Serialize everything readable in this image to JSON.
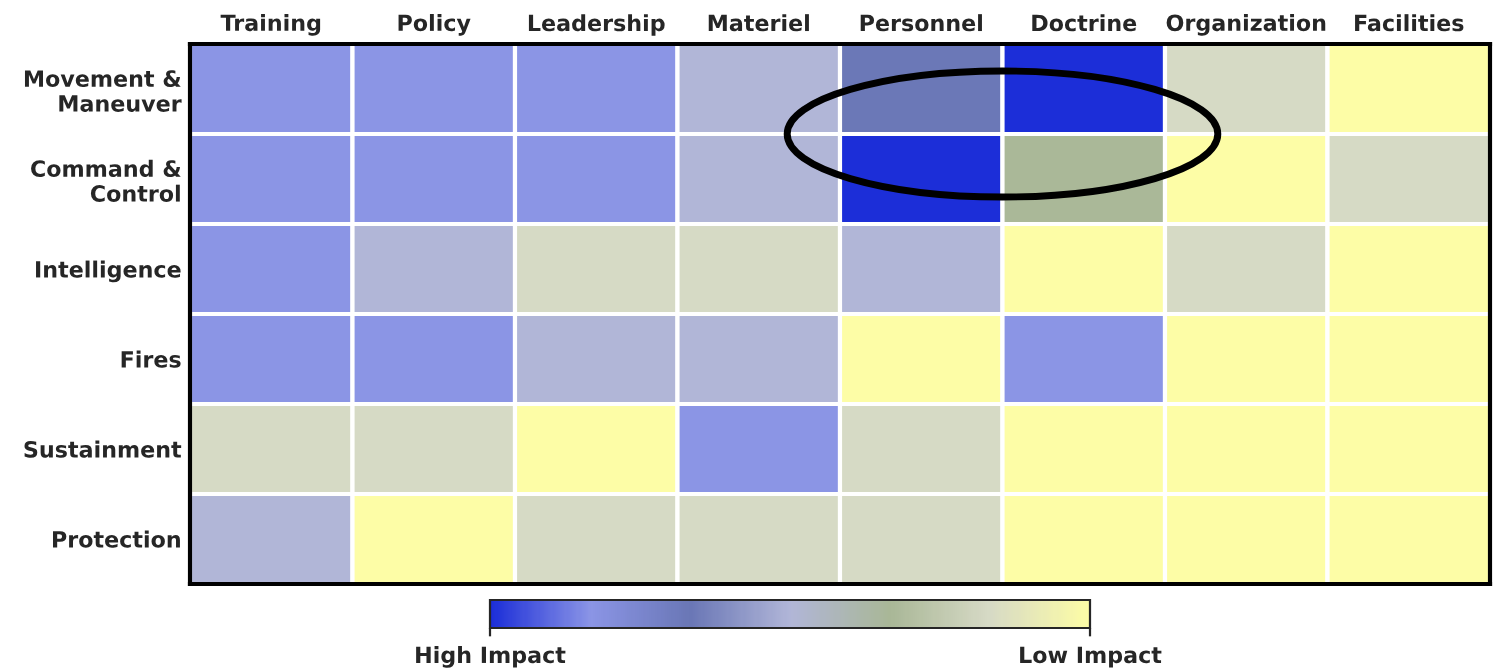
{
  "chart_data": {
    "type": "heatmap",
    "categories": [
      "Training",
      "Policy",
      "Leadership",
      "Materiel",
      "Personnel",
      "Doctrine",
      "Organization",
      "Facilities"
    ],
    "y_categories": [
      "Movement &\nManeuver",
      "Command &\nControl",
      "Intelligence",
      "Fires",
      "Sustainment",
      "Protection"
    ],
    "cells": [
      [
        0.17,
        0.17,
        0.17,
        0.5,
        0.33,
        0,
        0.83,
        1
      ],
      [
        0.17,
        0.17,
        0.17,
        0.5,
        0,
        0.67,
        1,
        0.83
      ],
      [
        0.17,
        0.5,
        0.83,
        0.83,
        0.5,
        1,
        0.83,
        1
      ],
      [
        0.17,
        0.17,
        0.5,
        0.5,
        1,
        0.17,
        1,
        1
      ],
      [
        0.83,
        0.83,
        1,
        0.17,
        0.83,
        1,
        1,
        1
      ],
      [
        0.5,
        1,
        0.83,
        0.83,
        0.83,
        1,
        1,
        1
      ]
    ],
    "colors": [
      "#1c2ed8",
      "#8b95e6",
      "#6a77b6",
      "#b1b6d8",
      "#a9b797",
      "#d7dac6",
      "#fdfda6"
    ],
    "clim": [
      0,
      1
    ],
    "cticks": [
      {
        "value": 0,
        "label": "High Impact"
      },
      {
        "value": 1,
        "label": "Low Impact"
      }
    ]
  }
}
